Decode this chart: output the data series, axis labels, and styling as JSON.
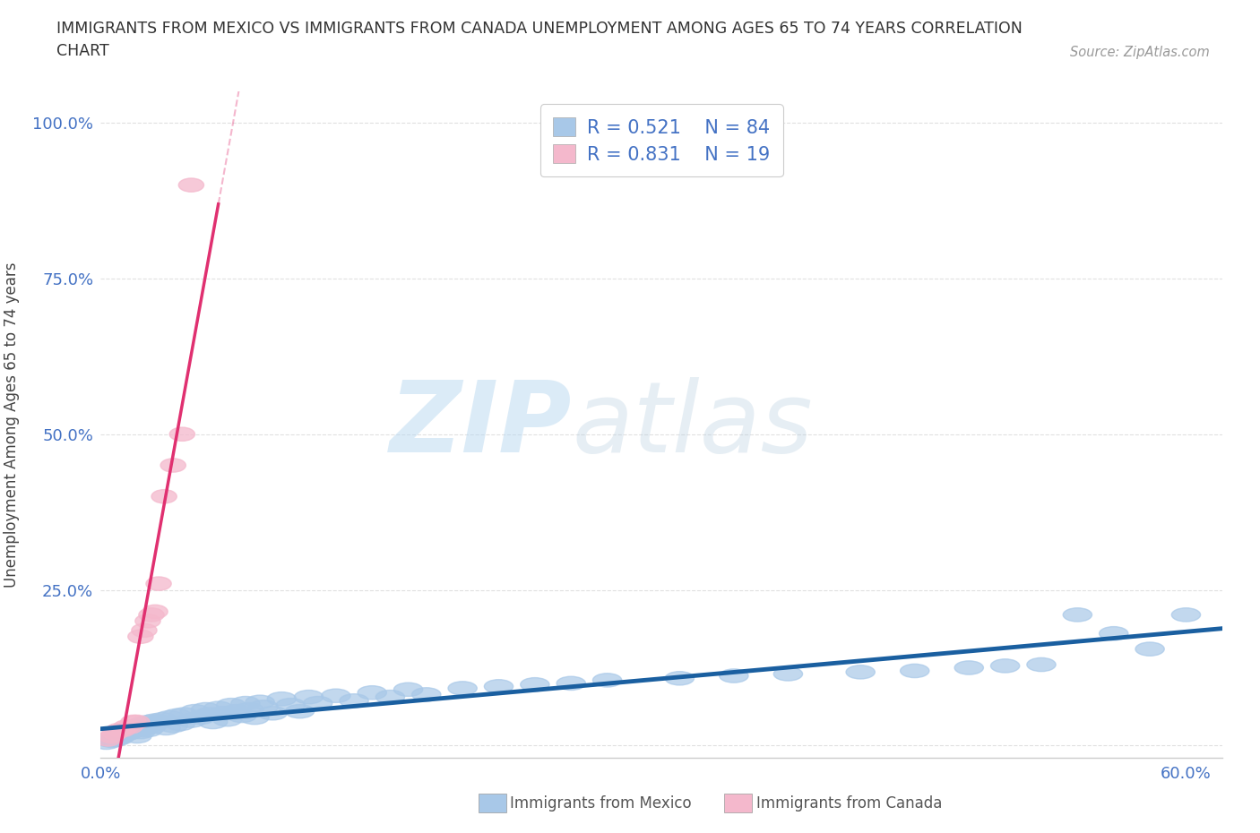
{
  "title": "IMMIGRANTS FROM MEXICO VS IMMIGRANTS FROM CANADA UNEMPLOYMENT AMONG AGES 65 TO 74 YEARS CORRELATION\nCHART",
  "source": "Source: ZipAtlas.com",
  "ylabel": "Unemployment Among Ages 65 to 74 years",
  "xlim": [
    0.0,
    0.62
  ],
  "ylim": [
    -0.02,
    1.05
  ],
  "legend_R1": "R = 0.521",
  "legend_N1": "N = 84",
  "legend_R2": "R = 0.831",
  "legend_N2": "N = 19",
  "mexico_color": "#a8c8e8",
  "canada_color": "#f4b8cc",
  "mexico_line_color": "#1a5fa0",
  "canada_line_color": "#e03070",
  "watermark_zip": "ZIP",
  "watermark_atlas": "atlas",
  "background_color": "#ffffff",
  "grid_color": "#e0e0e0",
  "mexico_scatter_x": [
    0.003,
    0.005,
    0.006,
    0.007,
    0.008,
    0.009,
    0.01,
    0.01,
    0.011,
    0.012,
    0.013,
    0.014,
    0.015,
    0.015,
    0.016,
    0.017,
    0.018,
    0.019,
    0.02,
    0.02,
    0.021,
    0.022,
    0.023,
    0.024,
    0.025,
    0.026,
    0.027,
    0.028,
    0.029,
    0.03,
    0.032,
    0.034,
    0.036,
    0.038,
    0.04,
    0.042,
    0.044,
    0.046,
    0.05,
    0.052,
    0.055,
    0.058,
    0.06,
    0.062,
    0.065,
    0.068,
    0.07,
    0.072,
    0.075,
    0.078,
    0.08,
    0.082,
    0.085,
    0.088,
    0.09,
    0.095,
    0.1,
    0.105,
    0.11,
    0.115,
    0.12,
    0.13,
    0.14,
    0.15,
    0.16,
    0.17,
    0.18,
    0.2,
    0.22,
    0.24,
    0.26,
    0.28,
    0.32,
    0.35,
    0.38,
    0.42,
    0.45,
    0.48,
    0.5,
    0.52,
    0.54,
    0.56,
    0.58,
    0.6
  ],
  "mexico_scatter_y": [
    0.005,
    0.01,
    0.008,
    0.012,
    0.01,
    0.015,
    0.012,
    0.018,
    0.015,
    0.02,
    0.018,
    0.022,
    0.02,
    0.025,
    0.022,
    0.028,
    0.025,
    0.03,
    0.015,
    0.025,
    0.03,
    0.022,
    0.035,
    0.028,
    0.032,
    0.025,
    0.038,
    0.03,
    0.035,
    0.04,
    0.038,
    0.042,
    0.028,
    0.045,
    0.032,
    0.048,
    0.035,
    0.05,
    0.04,
    0.055,
    0.045,
    0.058,
    0.05,
    0.038,
    0.06,
    0.052,
    0.042,
    0.065,
    0.055,
    0.048,
    0.068,
    0.058,
    0.045,
    0.07,
    0.062,
    0.052,
    0.075,
    0.065,
    0.055,
    0.078,
    0.068,
    0.08,
    0.072,
    0.085,
    0.078,
    0.09,
    0.082,
    0.092,
    0.095,
    0.098,
    0.1,
    0.105,
    0.108,
    0.112,
    0.115,
    0.118,
    0.12,
    0.125,
    0.128,
    0.13,
    0.21,
    0.18,
    0.155,
    0.21
  ],
  "canada_scatter_x": [
    0.004,
    0.006,
    0.008,
    0.01,
    0.012,
    0.014,
    0.016,
    0.018,
    0.02,
    0.022,
    0.024,
    0.026,
    0.028,
    0.03,
    0.032,
    0.035,
    0.04,
    0.045,
    0.05
  ],
  "canada_scatter_y": [
    0.01,
    0.015,
    0.02,
    0.025,
    0.025,
    0.03,
    0.03,
    0.038,
    0.038,
    0.175,
    0.185,
    0.2,
    0.21,
    0.215,
    0.26,
    0.4,
    0.45,
    0.5,
    0.9
  ]
}
